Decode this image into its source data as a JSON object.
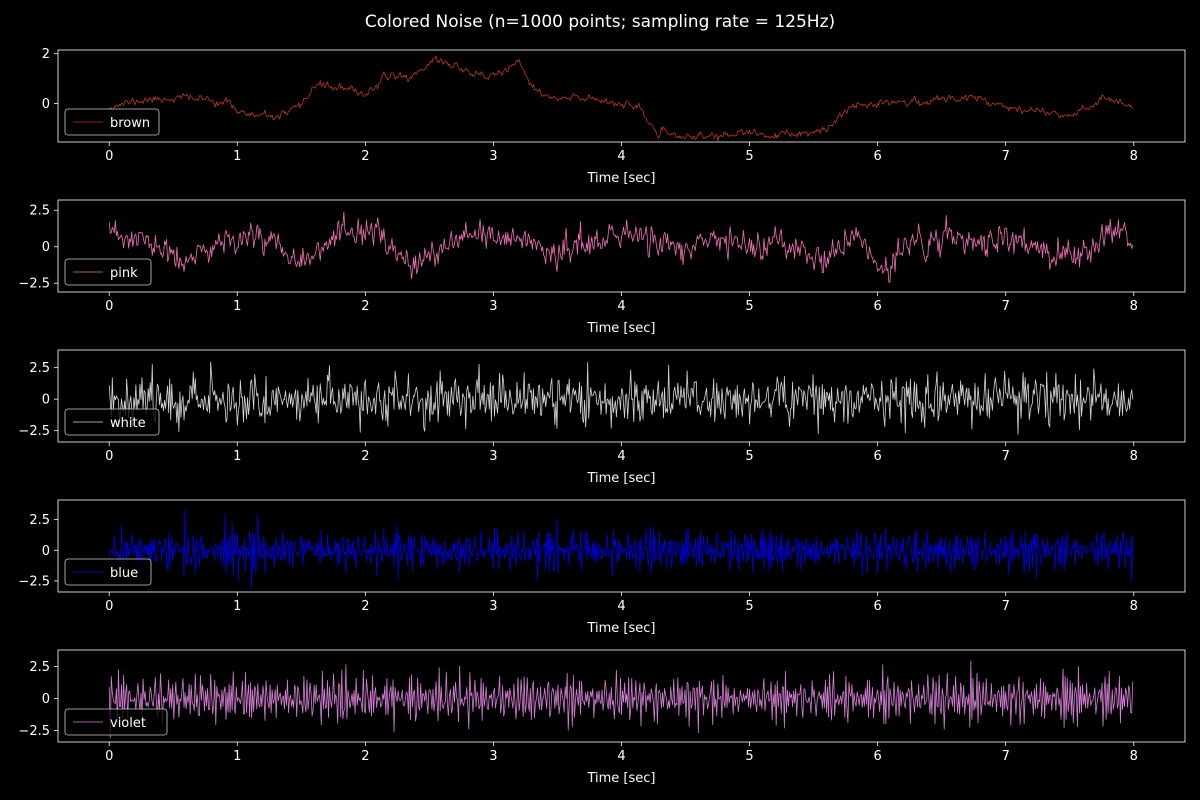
{
  "figure": {
    "title": "Colored Noise (n=1000 points; sampling rate = 125Hz)",
    "background": "#000000",
    "foreground": "#ffffff"
  },
  "chart_data": [
    {
      "type": "line",
      "name": "brown",
      "color": "#b5372b",
      "legend": "brown",
      "legend_position": "lower-left",
      "xlabel": "Time [sec]",
      "ylabel": "",
      "xlim": [
        -0.4,
        8.4
      ],
      "ylim": [
        -1.55,
        2.15
      ],
      "xticks": [
        0,
        1,
        2,
        3,
        4,
        5,
        6,
        7,
        8
      ],
      "yticks": [
        0,
        2
      ],
      "n": 1000,
      "fs": 125,
      "x_start": 0,
      "x_end": 7.992,
      "anchors": [
        [
          0,
          -0.1
        ],
        [
          0.3,
          0.15
        ],
        [
          0.6,
          0.25
        ],
        [
          0.9,
          0.05
        ],
        [
          1.1,
          -0.5
        ],
        [
          1.3,
          -0.55
        ],
        [
          1.5,
          -0.2
        ],
        [
          1.6,
          0.8
        ],
        [
          1.8,
          0.6
        ],
        [
          2.0,
          0.4
        ],
        [
          2.2,
          1.15
        ],
        [
          2.35,
          1.05
        ],
        [
          2.55,
          1.8
        ],
        [
          2.75,
          1.4
        ],
        [
          2.95,
          1.05
        ],
        [
          3.2,
          1.55
        ],
        [
          3.35,
          0.4
        ],
        [
          3.5,
          0.15
        ],
        [
          3.75,
          0.25
        ],
        [
          4.1,
          -0.1
        ],
        [
          4.3,
          -1.25
        ],
        [
          4.6,
          -1.35
        ],
        [
          4.95,
          -1.2
        ],
        [
          5.25,
          -1.3
        ],
        [
          5.6,
          -1.15
        ],
        [
          5.75,
          -0.2
        ],
        [
          6.0,
          0.1
        ],
        [
          6.3,
          0.05
        ],
        [
          6.5,
          0.15
        ],
        [
          6.75,
          0.3
        ],
        [
          7.0,
          -0.1
        ],
        [
          7.3,
          -0.35
        ],
        [
          7.5,
          -0.45
        ],
        [
          7.7,
          0.05
        ],
        [
          7.85,
          0.2
        ],
        [
          7.992,
          -0.2
        ]
      ],
      "noise_amp": 0.16,
      "noise_kind": "smooth",
      "seed": 11
    },
    {
      "type": "line",
      "name": "pink",
      "color": "#ee6fb6",
      "legend": "pink",
      "legend_position": "lower-left",
      "xlabel": "Time [sec]",
      "ylabel": "",
      "xlim": [
        -0.4,
        8.4
      ],
      "ylim": [
        -3.1,
        3.2
      ],
      "xticks": [
        0,
        1,
        2,
        3,
        4,
        5,
        6,
        7,
        8
      ],
      "yticks": [
        -2.5,
        0,
        2.5
      ],
      "n": 1000,
      "fs": 125,
      "x_start": 0,
      "x_end": 7.992,
      "anchors": [
        [
          0,
          0.8
        ],
        [
          0.3,
          0.3
        ],
        [
          0.6,
          -1.2
        ],
        [
          0.9,
          0.5
        ],
        [
          1.2,
          0.8
        ],
        [
          1.5,
          -0.8
        ],
        [
          1.8,
          0.5
        ],
        [
          2.05,
          1.4
        ],
        [
          2.25,
          -1.0
        ],
        [
          2.5,
          -0.8
        ],
        [
          2.8,
          0.6
        ],
        [
          3.2,
          0.6
        ],
        [
          3.5,
          -0.4
        ],
        [
          3.85,
          0.5
        ],
        [
          4.1,
          0.8
        ],
        [
          4.4,
          0.0
        ],
        [
          4.8,
          0.3
        ],
        [
          5.2,
          0.0
        ],
        [
          5.6,
          -0.8
        ],
        [
          5.85,
          0.7
        ],
        [
          6.0,
          -1.6
        ],
        [
          6.3,
          0.3
        ],
        [
          6.7,
          0.5
        ],
        [
          7.1,
          0.3
        ],
        [
          7.5,
          -0.7
        ],
        [
          7.75,
          0.0
        ],
        [
          7.85,
          1.2
        ],
        [
          7.992,
          0.5
        ]
      ],
      "noise_amp": 0.65,
      "noise_kind": "mixed",
      "seed": 23
    },
    {
      "type": "line",
      "name": "white",
      "color": "#d6d6d6",
      "legend": "white",
      "legend_position": "lower-left",
      "xlabel": "Time [sec]",
      "ylabel": "",
      "xlim": [
        -0.4,
        8.4
      ],
      "ylim": [
        -3.4,
        3.9
      ],
      "xticks": [
        0,
        1,
        2,
        3,
        4,
        5,
        6,
        7,
        8
      ],
      "yticks": [
        -2.5,
        0,
        2.5
      ],
      "n": 1000,
      "fs": 125,
      "x_start": 0,
      "x_end": 7.992,
      "anchors": [
        [
          0,
          0
        ],
        [
          7.992,
          0
        ]
      ],
      "noise_amp": 0.95,
      "noise_kind": "white",
      "seed": 37
    },
    {
      "type": "line",
      "name": "blue",
      "color": "#0000e6",
      "legend": "blue",
      "legend_position": "lower-left",
      "xlabel": "Time [sec]",
      "ylabel": "",
      "xlim": [
        -0.4,
        8.4
      ],
      "ylim": [
        -3.4,
        4.1
      ],
      "xticks": [
        0,
        1,
        2,
        3,
        4,
        5,
        6,
        7,
        8
      ],
      "yticks": [
        -2.5,
        0,
        2.5
      ],
      "n": 1000,
      "fs": 125,
      "x_start": 0,
      "x_end": 7.992,
      "anchors": [
        [
          0,
          0
        ],
        [
          7.992,
          0
        ]
      ],
      "noise_amp": 0.95,
      "noise_kind": "blue",
      "seed": 41
    },
    {
      "type": "line",
      "name": "violet",
      "color": "#d57fd6",
      "legend": "violet",
      "legend_position": "lower-left",
      "xlabel": "Time [sec]",
      "ylabel": "",
      "xlim": [
        -0.4,
        8.4
      ],
      "ylim": [
        -3.4,
        3.8
      ],
      "xticks": [
        0,
        1,
        2,
        3,
        4,
        5,
        6,
        7,
        8
      ],
      "yticks": [
        -2.5,
        0,
        2.5
      ],
      "n": 1000,
      "fs": 125,
      "x_start": 0,
      "x_end": 7.992,
      "anchors": [
        [
          0,
          0
        ],
        [
          7.992,
          0
        ]
      ],
      "noise_amp": 0.95,
      "noise_kind": "violet",
      "seed": 53
    }
  ]
}
